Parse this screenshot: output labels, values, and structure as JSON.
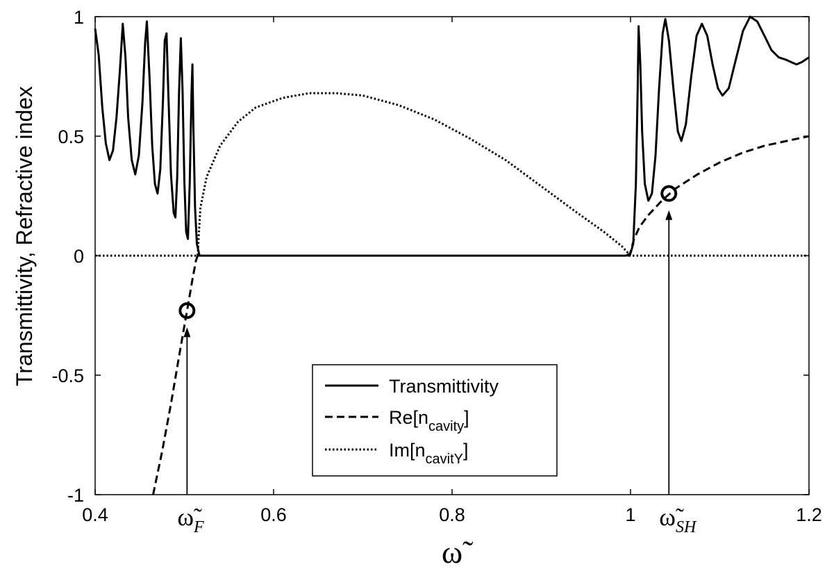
{
  "chart_data": {
    "type": "line",
    "ylabel": "Transmittivity, Refractive index",
    "xlabel": "ω̃",
    "xlim": [
      0.4,
      1.2
    ],
    "ylim": [
      -1,
      1
    ],
    "xticks": [
      {
        "value": 0.4,
        "label": "0.4"
      },
      {
        "value": 0.6,
        "label": "0.6"
      },
      {
        "value": 0.8,
        "label": "0.8"
      },
      {
        "value": 1.0,
        "label": "1"
      },
      {
        "value": 1.2,
        "label": "1.2"
      }
    ],
    "yticks": [
      {
        "value": -1,
        "label": "-1"
      },
      {
        "value": -0.5,
        "label": "-0.5"
      },
      {
        "value": 0,
        "label": "0"
      },
      {
        "value": 0.5,
        "label": "0.5"
      },
      {
        "value": 1,
        "label": "1"
      }
    ],
    "grid": false,
    "legend_position": "lower-center",
    "series": [
      {
        "name": "Transmittivity",
        "style": "solid",
        "color": "#000000",
        "points": [
          [
            0.4,
            0.95
          ],
          [
            0.404,
            0.84
          ],
          [
            0.408,
            0.62
          ],
          [
            0.412,
            0.47
          ],
          [
            0.416,
            0.4
          ],
          [
            0.42,
            0.44
          ],
          [
            0.424,
            0.58
          ],
          [
            0.428,
            0.79
          ],
          [
            0.431,
            0.97
          ],
          [
            0.434,
            0.83
          ],
          [
            0.437,
            0.58
          ],
          [
            0.441,
            0.4
          ],
          [
            0.445,
            0.34
          ],
          [
            0.449,
            0.42
          ],
          [
            0.453,
            0.64
          ],
          [
            0.456,
            0.89
          ],
          [
            0.458,
            0.98
          ],
          [
            0.461,
            0.74
          ],
          [
            0.464,
            0.46
          ],
          [
            0.467,
            0.3
          ],
          [
            0.47,
            0.26
          ],
          [
            0.473,
            0.36
          ],
          [
            0.476,
            0.65
          ],
          [
            0.478,
            0.9
          ],
          [
            0.48,
            0.93
          ],
          [
            0.482,
            0.68
          ],
          [
            0.485,
            0.34
          ],
          [
            0.488,
            0.18
          ],
          [
            0.49,
            0.16
          ],
          [
            0.492,
            0.33
          ],
          [
            0.494,
            0.68
          ],
          [
            0.496,
            0.91
          ],
          [
            0.498,
            0.69
          ],
          [
            0.5,
            0.31
          ],
          [
            0.502,
            0.1
          ],
          [
            0.504,
            0.07
          ],
          [
            0.506,
            0.3
          ],
          [
            0.508,
            0.68
          ],
          [
            0.509,
            0.8
          ],
          [
            0.51,
            0.55
          ],
          [
            0.512,
            0.2
          ],
          [
            0.514,
            0.05
          ],
          [
            0.517,
            0.0
          ],
          [
            0.55,
            0.0
          ],
          [
            0.6,
            0.0
          ],
          [
            0.7,
            0.0
          ],
          [
            0.8,
            0.0
          ],
          [
            0.9,
            0.0
          ],
          [
            0.995,
            0.0
          ],
          [
            1.0,
            0.01
          ],
          [
            1.003,
            0.05
          ],
          [
            1.006,
            0.3
          ],
          [
            1.008,
            0.7
          ],
          [
            1.009,
            0.96
          ],
          [
            1.011,
            0.8
          ],
          [
            1.013,
            0.52
          ],
          [
            1.016,
            0.3
          ],
          [
            1.02,
            0.23
          ],
          [
            1.024,
            0.26
          ],
          [
            1.028,
            0.42
          ],
          [
            1.032,
            0.7
          ],
          [
            1.036,
            0.93
          ],
          [
            1.039,
            0.99
          ],
          [
            1.043,
            0.9
          ],
          [
            1.048,
            0.7
          ],
          [
            1.053,
            0.52
          ],
          [
            1.057,
            0.48
          ],
          [
            1.062,
            0.55
          ],
          [
            1.068,
            0.75
          ],
          [
            1.074,
            0.92
          ],
          [
            1.08,
            0.97
          ],
          [
            1.086,
            0.92
          ],
          [
            1.092,
            0.8
          ],
          [
            1.098,
            0.7
          ],
          [
            1.103,
            0.67
          ],
          [
            1.11,
            0.7
          ],
          [
            1.118,
            0.82
          ],
          [
            1.126,
            0.94
          ],
          [
            1.134,
            1.0
          ],
          [
            1.142,
            0.98
          ],
          [
            1.15,
            0.92
          ],
          [
            1.158,
            0.86
          ],
          [
            1.166,
            0.83
          ],
          [
            1.174,
            0.82
          ],
          [
            1.18,
            0.81
          ],
          [
            1.186,
            0.8
          ],
          [
            1.192,
            0.81
          ],
          [
            1.2,
            0.83
          ]
        ]
      },
      {
        "name": "Re[ncavity]",
        "style": "dashed",
        "color": "#000000",
        "points": [
          [
            0.465,
            -1.0
          ],
          [
            0.475,
            -0.82
          ],
          [
            0.485,
            -0.62
          ],
          [
            0.495,
            -0.4
          ],
          [
            0.503,
            -0.23
          ],
          [
            0.509,
            -0.1
          ],
          [
            0.513,
            -0.02
          ],
          [
            0.515,
            0.0
          ],
          [
            0.999,
            0.0
          ],
          [
            1.001,
            0.03
          ],
          [
            1.004,
            0.07
          ],
          [
            1.01,
            0.12
          ],
          [
            1.02,
            0.17
          ],
          [
            1.035,
            0.23
          ],
          [
            1.05,
            0.28
          ],
          [
            1.075,
            0.34
          ],
          [
            1.1,
            0.39
          ],
          [
            1.125,
            0.43
          ],
          [
            1.15,
            0.46
          ],
          [
            1.175,
            0.48
          ],
          [
            1.2,
            0.5
          ]
        ]
      },
      {
        "name": "Im[ncavitY]",
        "style": "dotted",
        "color": "#000000",
        "points": [
          [
            0.4,
            0.0
          ],
          [
            0.515,
            0.0
          ],
          [
            0.516,
            0.08
          ],
          [
            0.518,
            0.2
          ],
          [
            0.525,
            0.33
          ],
          [
            0.54,
            0.46
          ],
          [
            0.56,
            0.56
          ],
          [
            0.58,
            0.62
          ],
          [
            0.61,
            0.66
          ],
          [
            0.64,
            0.68
          ],
          [
            0.67,
            0.68
          ],
          [
            0.7,
            0.67
          ],
          [
            0.74,
            0.63
          ],
          [
            0.78,
            0.57
          ],
          [
            0.82,
            0.49
          ],
          [
            0.86,
            0.4
          ],
          [
            0.9,
            0.29
          ],
          [
            0.94,
            0.18
          ],
          [
            0.97,
            0.1
          ],
          [
            0.99,
            0.04
          ],
          [
            1.0,
            0.0
          ],
          [
            1.2,
            0.0
          ]
        ]
      }
    ],
    "annotations": [
      {
        "type": "circle-marker",
        "x": 0.503,
        "y": -0.23
      },
      {
        "type": "circle-marker",
        "x": 1.043,
        "y": 0.26
      },
      {
        "type": "arrow",
        "x": 0.503,
        "from_y": -1.0,
        "to_y": -0.3,
        "label_base": "ω̃",
        "label_sub": "F"
      },
      {
        "type": "arrow",
        "x": 1.043,
        "from_y": -1.0,
        "to_y": 0.19,
        "label_base": "ω̃",
        "label_sub": "SH"
      }
    ],
    "legend": [
      {
        "style": "solid",
        "text": "Transmittivity",
        "sub": "",
        "after": ""
      },
      {
        "style": "dashed",
        "text": "Re[n",
        "sub": "cavity",
        "after": "]"
      },
      {
        "style": "dotted",
        "text": "Im[n",
        "sub": "cavitY",
        "after": "]"
      }
    ]
  }
}
